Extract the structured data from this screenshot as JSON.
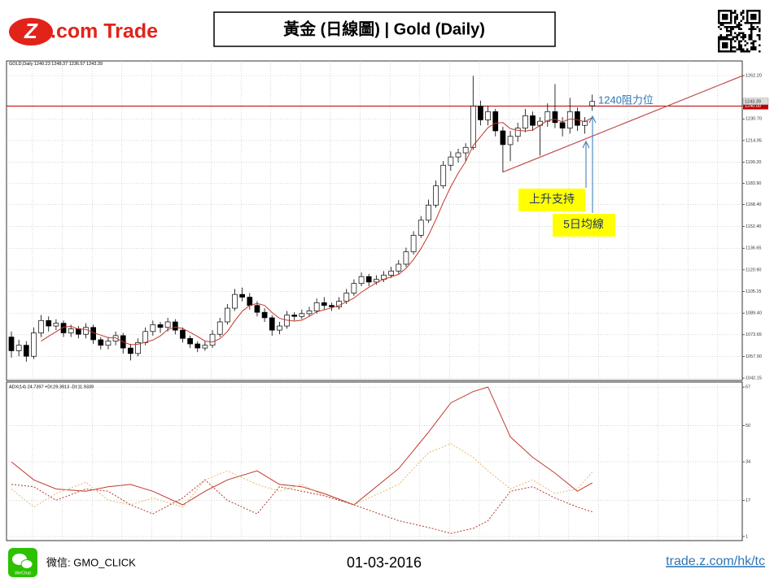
{
  "header": {
    "logo_mark": "Z",
    "logo_text": ".com Trade",
    "title": "黃金 (日線圖) | Gold  (Daily)"
  },
  "chart_data": [
    {
      "type": "candlestick",
      "symbol": "GOLD,Daily",
      "ylim": [
        1040.4,
        1272.85
      ],
      "yticks": [
        {
          "value": 1262.2,
          "label": "1262.20"
        },
        {
          "value": 1230.7,
          "label": "1230.70"
        },
        1214.95,
        {
          "value": 1199.2,
          "label": "1199.20"
        },
        {
          "value": 1183.9,
          "label": "1183.90"
        },
        {
          "value": 1168.4,
          "label": "1168.40"
        },
        {
          "value": 1152.4,
          "label": "1152.40"
        },
        1136.65,
        {
          "value": 1120.9,
          "label": "1120.90"
        },
        1105.15,
        {
          "value": 1089.4,
          "label": "1089.40"
        },
        1073.65,
        {
          "value": 1057.9,
          "label": "1057.90"
        },
        1042.15
      ],
      "grid": true,
      "candles": [
        [
          1072,
          1076,
          1057,
          1062
        ],
        [
          1062,
          1070,
          1058,
          1066
        ],
        [
          1066,
          1069,
          1054,
          1058
        ],
        [
          1058,
          1079,
          1056,
          1075
        ],
        [
          1075,
          1088,
          1072,
          1084
        ],
        [
          1084,
          1087,
          1076,
          1080
        ],
        [
          1080,
          1085,
          1077,
          1082
        ],
        [
          1082,
          1084,
          1072,
          1075
        ],
        [
          1075,
          1081,
          1072,
          1078
        ],
        [
          1078,
          1080,
          1071,
          1074
        ],
        [
          1074,
          1082,
          1071,
          1079
        ],
        [
          1079,
          1081,
          1067,
          1070
        ],
        [
          1070,
          1072,
          1063,
          1066
        ],
        [
          1066,
          1072,
          1063,
          1069
        ],
        [
          1069,
          1076,
          1066,
          1073
        ],
        [
          1073,
          1075,
          1060,
          1064
        ],
        [
          1064,
          1067,
          1055,
          1060
        ],
        [
          1060,
          1071,
          1058,
          1068
        ],
        [
          1068,
          1079,
          1066,
          1076
        ],
        [
          1076,
          1084,
          1073,
          1081
        ],
        [
          1081,
          1083,
          1075,
          1079
        ],
        [
          1079,
          1086,
          1076,
          1083
        ],
        [
          1083,
          1085,
          1074,
          1077
        ],
        [
          1077,
          1079,
          1068,
          1071
        ],
        [
          1071,
          1073,
          1064,
          1067
        ],
        [
          1067,
          1069,
          1061,
          1064
        ],
        [
          1064,
          1069,
          1062,
          1066
        ],
        [
          1066,
          1077,
          1064,
          1074
        ],
        [
          1074,
          1086,
          1072,
          1083
        ],
        [
          1083,
          1096,
          1081,
          1093
        ],
        [
          1093,
          1107,
          1091,
          1103
        ],
        [
          1103,
          1108,
          1098,
          1101
        ],
        [
          1101,
          1104,
          1092,
          1095
        ],
        [
          1095,
          1098,
          1087,
          1090
        ],
        [
          1090,
          1093,
          1083,
          1086
        ],
        [
          1086,
          1088,
          1073,
          1077
        ],
        [
          1077,
          1083,
          1074,
          1080
        ],
        [
          1080,
          1091,
          1078,
          1088
        ],
        [
          1088,
          1090,
          1084,
          1087
        ],
        [
          1087,
          1092,
          1085,
          1089
        ],
        [
          1089,
          1094,
          1087,
          1091
        ],
        [
          1091,
          1100,
          1089,
          1097
        ],
        [
          1097,
          1101,
          1092,
          1095
        ],
        [
          1095,
          1097,
          1091,
          1094
        ],
        [
          1094,
          1101,
          1092,
          1098
        ],
        [
          1098,
          1107,
          1096,
          1104
        ],
        [
          1104,
          1114,
          1102,
          1111
        ],
        [
          1111,
          1119,
          1109,
          1116
        ],
        [
          1116,
          1118,
          1109,
          1112
        ],
        [
          1112,
          1117,
          1110,
          1114
        ],
        [
          1114,
          1120,
          1112,
          1117
        ],
        [
          1117,
          1123,
          1115,
          1120
        ],
        [
          1120,
          1128,
          1118,
          1125
        ],
        [
          1125,
          1137,
          1123,
          1134
        ],
        [
          1134,
          1149,
          1132,
          1146
        ],
        [
          1146,
          1160,
          1144,
          1157
        ],
        [
          1157,
          1172,
          1155,
          1168
        ],
        [
          1168,
          1186,
          1166,
          1182
        ],
        [
          1182,
          1200,
          1180,
          1197
        ],
        [
          1197,
          1207,
          1193,
          1203
        ],
        [
          1203,
          1209,
          1199,
          1206
        ],
        [
          1206,
          1213,
          1200,
          1210
        ],
        [
          1210,
          1262,
          1208,
          1240
        ],
        [
          1240,
          1244,
          1226,
          1230
        ],
        [
          1230,
          1240,
          1226,
          1236
        ],
        [
          1236,
          1238,
          1218,
          1222
        ],
        [
          1222,
          1225,
          1192,
          1212
        ],
        [
          1212,
          1222,
          1200,
          1218
        ],
        [
          1218,
          1228,
          1214,
          1224
        ],
        [
          1224,
          1238,
          1221,
          1233
        ],
        [
          1233,
          1236,
          1222,
          1226
        ],
        [
          1226,
          1232,
          1204,
          1229
        ],
        [
          1229,
          1242,
          1225,
          1236
        ],
        [
          1236,
          1256,
          1224,
          1228
        ],
        [
          1228,
          1232,
          1218,
          1224
        ],
        [
          1224,
          1246,
          1220,
          1236
        ],
        [
          1236,
          1239,
          1222,
          1226
        ],
        [
          1226,
          1232,
          1220,
          1229
        ],
        [
          1240.23,
          1248.37,
          1236.57,
          1243.39
        ]
      ],
      "series": [
        {
          "color": "#c0392b",
          "values": [
            null,
            null,
            null,
            null,
            1069,
            1072.6,
            1075.8,
            1079.2,
            1079.8,
            1077.8,
            1077.6,
            1075.2,
            1073.4,
            1071.6,
            1071.4,
            1068.4,
            1066.4,
            1066.8,
            1068.2,
            1069.8,
            1072.8,
            1077.4,
            1079.2,
            1078.2,
            1075.4,
            1072.4,
            1069,
            1068.4,
            1070.8,
            1076,
            1083.8,
            1090.8,
            1095,
            1096.4,
            1095,
            1089.8,
            1085.6,
            1084.2,
            1083.6,
            1084.2,
            1087,
            1090.4,
            1091.8,
            1093.2,
            1095,
            1097.6,
            1100.4,
            1104.6,
            1108.2,
            1111.4,
            1114,
            1115.8,
            1117.6,
            1122,
            1128.4,
            1136.4,
            1146,
            1157.4,
            1170,
            1181.4,
            1191.2,
            1199.6,
            1211.2,
            1217.8,
            1224.4,
            1227.6,
            1228,
            1223.6,
            1222.4,
            1221.8,
            1222.6,
            1226,
            1229.6,
            1230.4,
            1228.6,
            1230.6,
            1230,
            1228.6,
            1231.7
          ]
        }
      ],
      "hlines": [
        {
          "value": 1240,
          "label": "1240.00",
          "color": "#c00000"
        }
      ],
      "support_line": {
        "x": [
          66,
          98.5
        ],
        "values": [
          1192,
          1262.8
        ],
        "color": "#c0504d"
      },
      "annotations": [
        "1240阻力位",
        "上升支持",
        "5日均線"
      ]
    },
    {
      "type": "line",
      "title": "ADX(14) 24.7397 +DI:29.3913 -DI:11.9339",
      "ylim": [
        -0.8,
        69.2
      ],
      "yticks": [
        67,
        50,
        34,
        17,
        1
      ],
      "x": [
        0,
        3,
        6,
        10,
        13,
        16,
        19,
        23,
        26,
        29,
        33,
        36,
        39,
        42,
        46,
        52,
        56,
        59,
        62,
        64,
        67,
        70,
        73,
        76,
        78
      ],
      "series": [
        {
          "color": "#c0392b",
          "dash": false,
          "values": [
            34,
            26,
            22,
            21,
            23,
            24,
            21,
            15,
            21,
            26,
            30,
            24,
            23,
            20,
            15,
            31,
            47,
            60,
            65,
            67,
            45,
            36,
            29,
            21,
            24.7397
          ]
        },
        {
          "color": "#e6b86a",
          "dash": true,
          "values": [
            22,
            14,
            20,
            25,
            17,
            15,
            18,
            14,
            26,
            30,
            24,
            21,
            24,
            19,
            15,
            24,
            38,
            42,
            36,
            30,
            22,
            26,
            20,
            22,
            29.3913
          ]
        },
        {
          "color": "#b03a2e",
          "dash": true,
          "values": [
            24,
            23,
            17,
            22,
            21,
            15,
            11,
            18,
            26,
            17,
            11,
            23,
            21,
            19,
            15,
            8,
            5,
            2.4,
            4.6,
            8,
            21,
            23,
            18,
            14,
            11.9339
          ]
        }
      ]
    }
  ],
  "footer": {
    "wechat_icon": "WeChat",
    "wechat": "微信: GMO_CLICK",
    "date": "01-03-2016",
    "url": "trade.z.com/hk/tc"
  }
}
